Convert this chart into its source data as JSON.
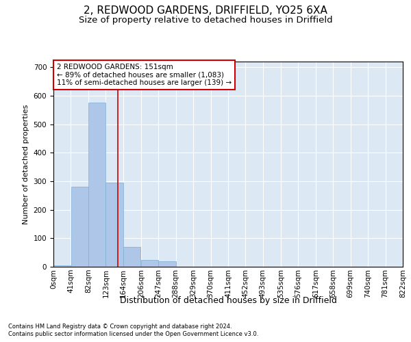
{
  "title": "2, REDWOOD GARDENS, DRIFFIELD, YO25 6XA",
  "subtitle": "Size of property relative to detached houses in Driffield",
  "xlabel": "Distribution of detached houses by size in Driffield",
  "ylabel": "Number of detached properties",
  "footnote1": "Contains HM Land Registry data © Crown copyright and database right 2024.",
  "footnote2": "Contains public sector information licensed under the Open Government Licence v3.0.",
  "bin_edges": [
    0,
    41,
    82,
    123,
    164,
    206,
    247,
    288,
    329,
    370,
    411,
    452,
    493,
    535,
    576,
    617,
    658,
    699,
    740,
    781,
    822
  ],
  "bar_heights": [
    5,
    280,
    575,
    295,
    70,
    25,
    20,
    0,
    0,
    0,
    0,
    0,
    0,
    0,
    0,
    0,
    0,
    0,
    0,
    0
  ],
  "bar_color": "#aec6e8",
  "bar_edgecolor": "#7aaed6",
  "vline_x": 151,
  "vline_color": "#cc0000",
  "annotation_line1": "2 REDWOOD GARDENS: 151sqm",
  "annotation_line2": "← 89% of detached houses are smaller (1,083)",
  "annotation_line3": "11% of semi-detached houses are larger (139) →",
  "annotation_box_color": "#ffffff",
  "annotation_box_edgecolor": "#cc0000",
  "ylim": [
    0,
    720
  ],
  "yticks": [
    0,
    100,
    200,
    300,
    400,
    500,
    600,
    700
  ],
  "background_color": "#dce9f5",
  "title_fontsize": 11,
  "subtitle_fontsize": 9.5,
  "xlabel_fontsize": 9,
  "ylabel_fontsize": 8,
  "tick_fontsize": 7.5,
  "annotation_fontsize": 7.5,
  "footnote_fontsize": 6
}
